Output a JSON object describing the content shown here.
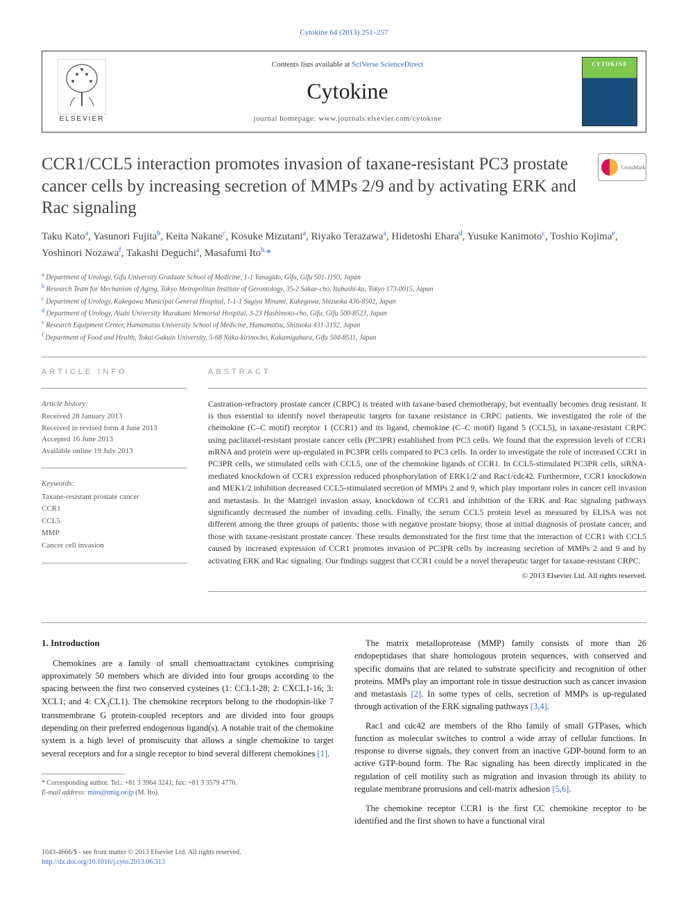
{
  "top_link": "Cytokine 64 (2013) 251–257",
  "header": {
    "contents_prefix": "Contents lists available at ",
    "contents_link": "SciVerse ScienceDirect",
    "journal_name": "Cytokine",
    "homepage_prefix": "journal homepage: ",
    "homepage_url": "www.journals.elsevier.com/cytokine",
    "publisher": "ELSEVIER",
    "cover_text": "CYTOKINE"
  },
  "crossmark_label": "CrossMark",
  "article": {
    "title": "CCR1/CCL5 interaction promotes invasion of taxane-resistant PC3 prostate cancer cells by increasing secretion of MMPs 2/9 and by activating ERK and Rac signaling",
    "authors_html": "Taku Kato<sup>a</sup>, Yasunori Fujita<sup>b</sup>, Keita Nakane<sup>c</sup>, Kosuke Mizutani<sup>a</sup>, Riyako Terazawa<sup>a</sup>, Hidetoshi Ehara<sup>d</sup>, Yusuke Kanimoto<sup>c</sup>, Toshio Kojima<sup>e</sup>, Yoshinori Nozawa<sup>f</sup>, Takashi Deguchi<sup>a</sup>, Masafumi Ito<sup>b,</sup><span class='corr'>*</span>",
    "affiliations": [
      {
        "sup": "a",
        "text": "Department of Urology, Gifu University Graduate School of Medicine, 1-1 Yanagido, Gifu, Gifu 501-1193, Japan"
      },
      {
        "sup": "b",
        "text": "Research Team for Mechanism of Aging, Tokyo Metropolitan Institute of Gerontology, 35-2 Sakae-cho, Itabashi-ku, Tokyo 173-0015, Japan"
      },
      {
        "sup": "c",
        "text": "Department of Urology, Kakegawa Municipal General Hospital, 1-1-1 Sugiya Minami, Kakegawa, Shizuoka 436-8502, Japan"
      },
      {
        "sup": "d",
        "text": "Department of Urology, Asahi University Murakami Memorial Hospital, 3-23 Hashimoto-cho, Gifu, Gifu 500-8523, Japan"
      },
      {
        "sup": "e",
        "text": "Research Equipment Center, Hamamatsu University School of Medicine, Hamamatsu, Shizuoka 431-3192, Japan"
      },
      {
        "sup": "f",
        "text": "Department of Food and Health, Tokai Gakuin University, 5-68 Naka-kirinocho, Kakamigahara, Gifu 504-8511, Japan"
      }
    ]
  },
  "info": {
    "heading": "article info",
    "history_label": "Article history:",
    "history": [
      "Received 28 January 2013",
      "Received in revised form 4 June 2013",
      "Accepted 16 June 2013",
      "Available online 19 July 2013"
    ],
    "keywords_label": "Keywords:",
    "keywords": [
      "Taxane-resistant prostate cancer",
      "CCR1",
      "CCL5",
      "MMP",
      "Cancer cell invasion"
    ]
  },
  "abstract": {
    "heading": "abstract",
    "text": "Castration-refractory prostate cancer (CRPC) is treated with taxane-based chemotherapy, but eventually becomes drug resistant. It is thus essential to identify novel therapeutic targets for taxane resistance in CRPC patients. We investigated the role of the chemokine (C–C motif) receptor 1 (CCR1) and its ligand, chemokine (C–C motif) ligand 5 (CCL5), in taxane-resistant CRPC using paclitaxel-resistant prostate cancer cells (PC3PR) established from PC3 cells. We found that the expression levels of CCR1 mRNA and protein were up-regulated in PC3PR cells compared to PC3 cells. In order to investigate the role of increased CCR1 in PC3PR cells, we stimulated cells with CCL5, one of the chemokine ligands of CCR1. In CCL5-stimulated PC3PR cells, siRNA-mediated knockdown of CCR1 expression reduced phosphorylation of ERK1/2 and Rac1/cdc42. Furthermore, CCR1 knockdown and MEK1/2 inhibition decreased CCL5-stimulated secretion of MMPs 2 and 9, which play important roles in cancer cell invasion and metastasis. In the Matrigel invasion assay, knockdown of CCR1 and inhibition of the ERK and Rac signaling pathways significantly decreased the number of invading cells. Finally, the serum CCL5 protein level as measured by ELISA was not different among the three groups of patients: those with negative prostate biopsy, those at initial diagnosis of prostate cancer, and those with taxane-resistant prostate cancer. These results demonstrated for the first time that the interaction of CCR1 with CCL5 caused by increased expression of CCR1 promotes invasion of PC3PR cells by increasing secretion of MMPs 2 and 9 and by activating ERK and Rac signaling. Our findings suggest that CCR1 could be a novel therapeutic target for taxane-resistant CRPC.",
    "copyright": "© 2013 Elsevier Ltd. All rights reserved."
  },
  "body": {
    "intro_heading": "1. Introduction",
    "left_paras": [
      "Chemokines are a family of small chemoattractant cytokines comprising approximately 50 members which are divided into four groups according to the spacing between the first two conserved cysteines (1: CCL1-28; 2: CXCL1-16; 3: XCL1; and 4: CX<sub>3</sub>CL1). The chemokine receptors belong to the rhodopsin-like 7 transmembrane G protein-coupled receptors and are divided into four groups depending on their preferred endogenous ligand(s). A notable trait of the chemokine system is a high level of promiscuity that allows a single chemokine to target several receptors and for a single receptor to bind several different chemokines <a>[1]</a>."
    ],
    "right_paras": [
      "The matrix metalloprotease (MMP) family consists of more than 26 endopeptidases that share homologous protein sequences, with conserved and specific domains that are related to substrate specificity and recognition of other proteins. MMPs play an important role in tissue destruction such as cancer invasion and metastasis <a>[2]</a>. In some types of cells, secretion of MMPs is up-regulated through activation of the ERK signaling pathways <a>[3,4]</a>.",
      "Rac1 and cdc42 are members of the Rho family of small GTPases, which function as molecular switches to control a wide array of cellular functions. In response to diverse signals, they convert from an inactive GDP-bound form to an active GTP-bound form. The Rac signaling has been directly implicated in the regulation of cell motility such as migration and invasion through its ability to regulate membrane protrusions and cell-matrix adhesion <a>[5,6]</a>.",
      "The chemokine receptor CCR1 is the first CC chemokine receptor to be identified and the first shown to have a functional viral"
    ]
  },
  "footnote": {
    "corr_line": "* Corresponding author. Tel.: +81 3 3964 3241; fax: +81 3 3579 4776.",
    "email_label": "E-mail address: ",
    "email": "mito@tmig.or.jp",
    "email_name": " (M. Ito)."
  },
  "footer": {
    "issn_line": "1043-4666/$ - see front matter © 2013 Elsevier Ltd. All rights reserved.",
    "doi": "http://dx.doi.org/10.1016/j.cyto.2013.06.313"
  },
  "colors": {
    "link": "#3366cc",
    "text": "#333333",
    "muted": "#555555",
    "border": "#999999"
  }
}
